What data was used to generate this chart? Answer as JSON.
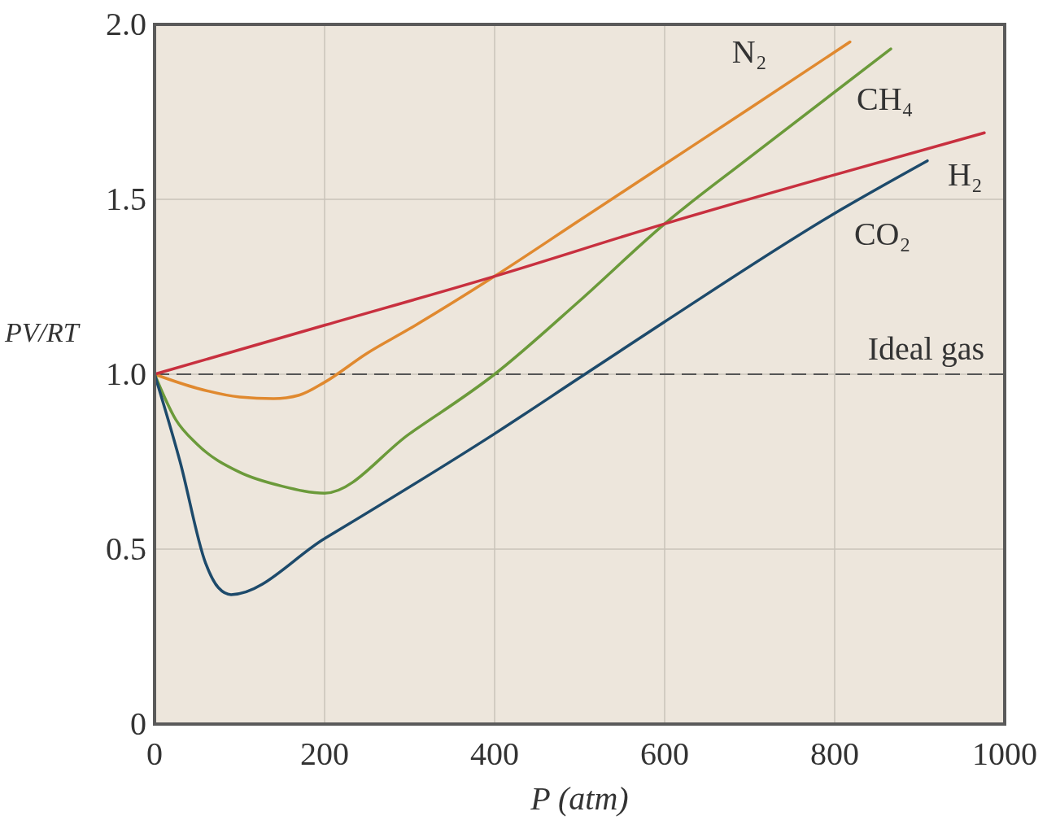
{
  "chart_data": {
    "type": "line",
    "xlabel": "P (atm)",
    "ylabel": "PV/RT",
    "xlim": [
      0,
      1000
    ],
    "xticks": [
      0,
      200,
      400,
      600,
      800,
      1000
    ],
    "ylim": [
      0,
      2.0
    ],
    "yticks": [
      0,
      0.5,
      {
        "value": 1.0,
        "label": "1.0"
      },
      1.5,
      {
        "value": 2.0,
        "label": "2.0"
      }
    ],
    "grid": true,
    "ref_lines": [
      {
        "axis": "y",
        "value": 1.0,
        "label": "Ideal gas",
        "color": "#555555",
        "line_style": "dashed"
      }
    ],
    "series": [
      {
        "name": "N₂",
        "color": "#e0892f",
        "x": [
          0,
          50,
          100,
          140,
          170,
          200,
          250,
          300,
          400,
          500,
          600,
          700,
          818
        ],
        "values": [
          1.0,
          0.96,
          0.935,
          0.93,
          0.94,
          0.977,
          1.06,
          1.13,
          1.28,
          1.44,
          1.6,
          1.76,
          1.95
        ]
      },
      {
        "name": "CH₄",
        "color": "#6b9a3a",
        "x": [
          0,
          25,
          50,
          100,
          150,
          200,
          300,
          400,
          500,
          600,
          700,
          866
        ],
        "values": [
          1.0,
          0.87,
          0.8,
          0.72,
          0.68,
          0.66,
          0.83,
          1.0,
          1.21,
          1.43,
          1.62,
          1.93
        ]
      },
      {
        "name": "H₂",
        "color": "#c8303f",
        "x": [
          0,
          200,
          400,
          600,
          800,
          976
        ],
        "values": [
          1.0,
          1.14,
          1.28,
          1.43,
          1.57,
          1.69
        ]
      },
      {
        "name": "CO₂",
        "color": "#1d4a6b",
        "x": [
          0,
          30,
          60,
          75,
          90,
          200,
          400,
          500,
          600,
          800,
          909
        ],
        "values": [
          1.0,
          0.75,
          0.46,
          0.39,
          0.37,
          0.53,
          0.83,
          0.99,
          1.15,
          1.46,
          1.61
        ]
      }
    ]
  }
}
